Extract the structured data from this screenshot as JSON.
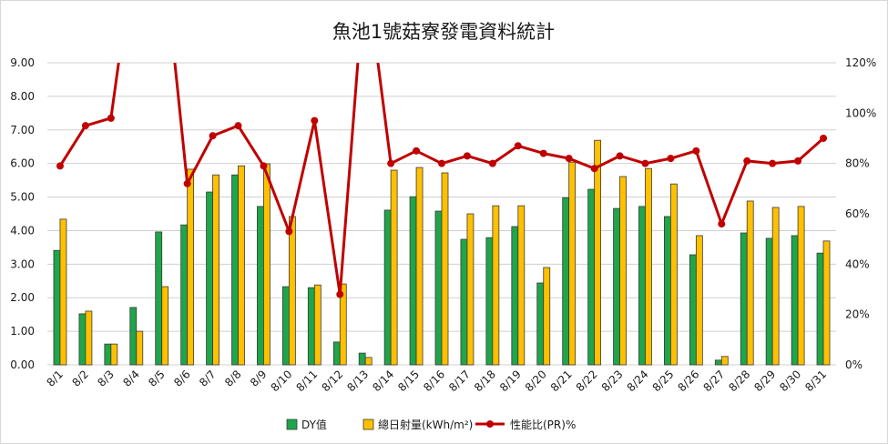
{
  "chart_data": {
    "type": "bar",
    "title": "魚池1號菇寮發電資料統計",
    "categories": [
      "8/1",
      "8/2",
      "8/3",
      "8/4",
      "8/5",
      "8/6",
      "8/7",
      "8/8",
      "8/9",
      "8/10",
      "8/11",
      "8/12",
      "8/13",
      "8/14",
      "8/15",
      "8/16",
      "8/17",
      "8/18",
      "8/19",
      "8/20",
      "8/21",
      "8/22",
      "8/23",
      "8/24",
      "8/25",
      "8/26",
      "8/27",
      "8/28",
      "8/29",
      "8/30",
      "8/31"
    ],
    "series": [
      {
        "name": "DY值",
        "type": "bar",
        "axis": "left",
        "color": "#1fa54a",
        "values": [
          3.41,
          1.52,
          0.62,
          1.71,
          3.96,
          4.17,
          5.15,
          5.66,
          4.72,
          2.33,
          2.3,
          0.68,
          0.35,
          4.61,
          5.01,
          4.58,
          3.74,
          3.79,
          4.12,
          2.44,
          4.98,
          5.23,
          4.66,
          4.72,
          4.42,
          3.28,
          0.14,
          3.93,
          3.77,
          3.85,
          3.33
        ]
      },
      {
        "name": "總日射量(kWh/m²)",
        "type": "bar",
        "axis": "left",
        "color": "#ffc000",
        "values": [
          4.34,
          1.6,
          0.62,
          1.0,
          2.33,
          5.83,
          5.66,
          5.93,
          5.99,
          4.42,
          2.38,
          2.41,
          0.22,
          5.8,
          5.88,
          5.72,
          4.5,
          4.74,
          4.74,
          2.9,
          6.04,
          6.69,
          5.61,
          5.85,
          5.39,
          3.85,
          0.25,
          4.88,
          4.69,
          4.72,
          3.69
        ]
      },
      {
        "name": "性能比(PR)%",
        "type": "line",
        "axis": "right",
        "color": "#c00000",
        "values": [
          79,
          95,
          98,
          171,
          170,
          72,
          91,
          95,
          79,
          53,
          97,
          28,
          159,
          80,
          85,
          80,
          83,
          80,
          87,
          84,
          82,
          78,
          83,
          80,
          82,
          85,
          56,
          81,
          80,
          81,
          90
        ]
      }
    ],
    "y_left": {
      "range": [
        0,
        9
      ],
      "tick_labels": [
        "0.00",
        "1.00",
        "2.00",
        "3.00",
        "4.00",
        "5.00",
        "6.00",
        "7.00",
        "8.00",
        "9.00"
      ]
    },
    "y_right": {
      "range": [
        0,
        120
      ],
      "tick_labels": [
        "0%",
        "20%",
        "40%",
        "60%",
        "80%",
        "100%",
        "120%"
      ]
    },
    "grid": true,
    "legend": "bottom"
  }
}
